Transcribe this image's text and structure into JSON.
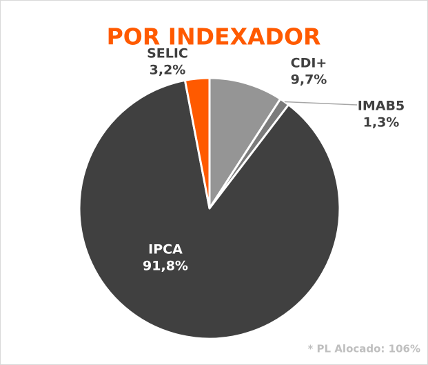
{
  "chart_data": {
    "type": "pie",
    "title": "POR INDEXADOR",
    "categories": [
      "CDI+",
      "IMAB5",
      "IPCA",
      "SELIC"
    ],
    "values": [
      9.7,
      1.3,
      91.8,
      3.2
    ],
    "value_labels": [
      "9,7%",
      "1,3%",
      "91,8%",
      "3,2%"
    ],
    "colors": [
      "#959595",
      "#7b7b7b",
      "#404040",
      "#ff5a00"
    ],
    "note": "* PL Alocado: 106%"
  }
}
